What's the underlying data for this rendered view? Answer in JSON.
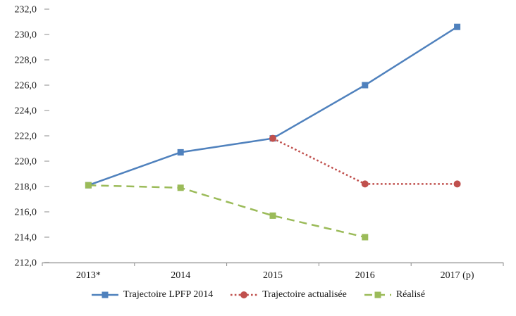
{
  "chart_data": {
    "type": "line",
    "title": "",
    "xlabel": "",
    "ylabel": "",
    "categories": [
      "2013*",
      "2014",
      "2015",
      "2016",
      "2017 (p)"
    ],
    "series": [
      {
        "name": "Trajectoire LPFP 2014",
        "values": [
          218.1,
          220.7,
          221.8,
          226.0,
          230.6
        ],
        "color": "#4F81BD",
        "line_style": "solid",
        "marker": "square"
      },
      {
        "name": "Trajectoire actualisée",
        "values": [
          null,
          null,
          221.8,
          218.2,
          218.2
        ],
        "color": "#C0504D",
        "line_style": "dotted",
        "marker": "circle"
      },
      {
        "name": "Réalisé",
        "values": [
          218.1,
          217.9,
          215.7,
          214.0,
          null
        ],
        "color": "#9BBB59",
        "line_style": "dashed",
        "marker": "square"
      }
    ],
    "ylim": [
      212.0,
      232.0
    ],
    "y_step": 2.0,
    "y_tick_labels": [
      "212,0",
      "214,0",
      "216,0",
      "218,0",
      "220,0",
      "222,0",
      "224,0",
      "226,0",
      "228,0",
      "230,0",
      "232,0"
    ],
    "grid": false,
    "legend_position": "bottom",
    "axis_color": "#8c8c8c",
    "text_color": "#1a1a1a"
  }
}
